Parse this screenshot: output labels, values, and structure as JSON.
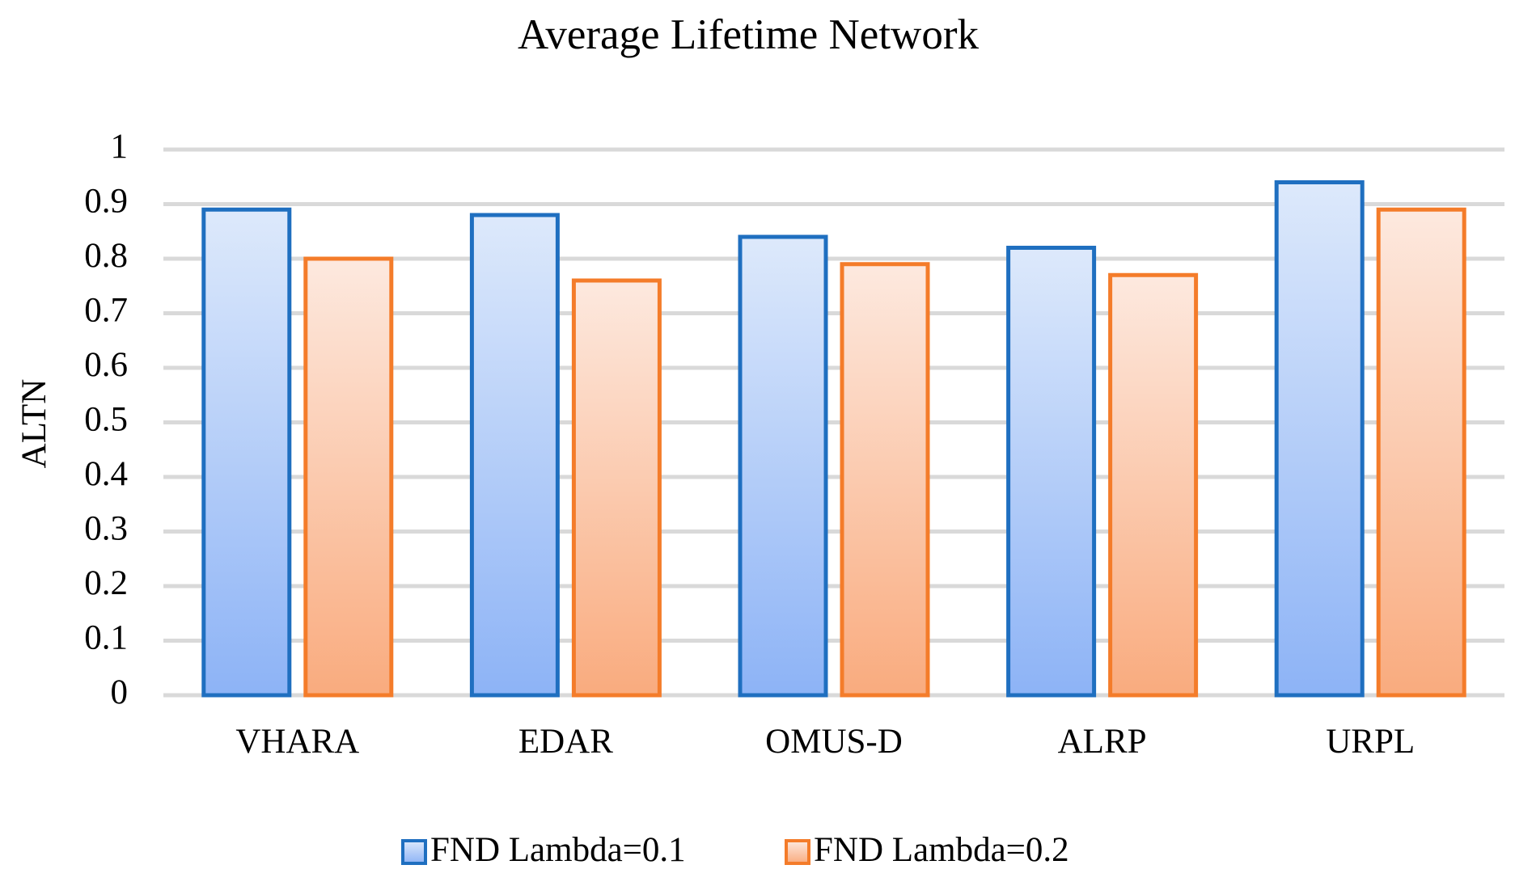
{
  "chart_data": {
    "type": "bar",
    "title": "Average Lifetime Network",
    "y_label": "ALTN",
    "categories": [
      "VHARA",
      "EDAR",
      "OMUS-D",
      "ALRP",
      "URPL"
    ],
    "series": [
      {
        "name": "FND Lambda=0.1",
        "color": "#1f6fc0",
        "values": [
          0.89,
          0.88,
          0.84,
          0.82,
          0.94
        ]
      },
      {
        "name": "FND Lambda=0.2",
        "color": "#f47c2a",
        "values": [
          0.8,
          0.76,
          0.79,
          0.77,
          0.89
        ]
      }
    ],
    "ylim": [
      0,
      1
    ],
    "yticks": [
      0,
      0.1,
      0.2,
      0.3,
      0.4,
      0.5,
      0.6,
      0.7,
      0.8,
      0.9,
      1
    ],
    "grid": true,
    "legend": "bottom"
  }
}
